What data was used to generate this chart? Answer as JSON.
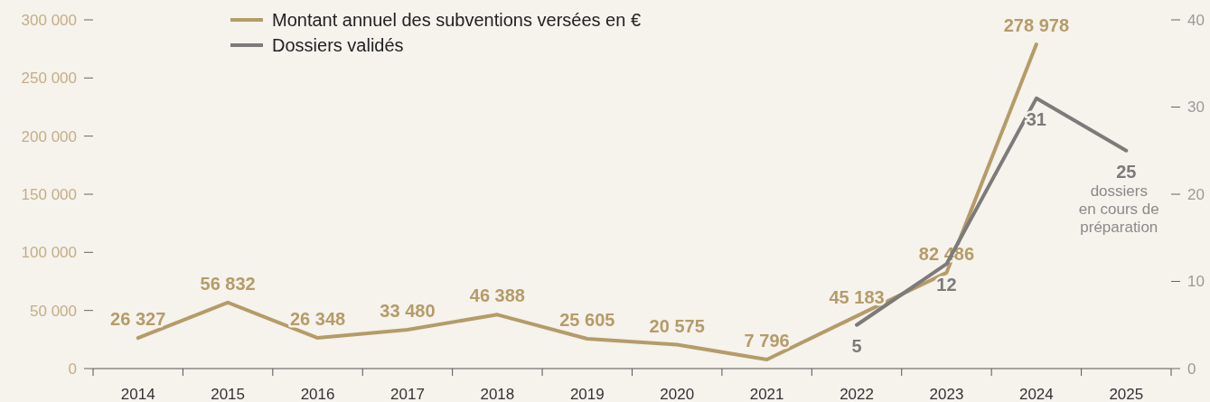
{
  "chart_data": {
    "type": "line",
    "categories": [
      "2014",
      "2015",
      "2016",
      "2017",
      "2018",
      "2019",
      "2020",
      "2021",
      "2022",
      "2023",
      "2024",
      "2025"
    ],
    "series": [
      {
        "name": "Montant annuel des subventions versées en €",
        "color": "#b49c69",
        "values": [
          26327,
          56832,
          26348,
          33480,
          46388,
          25605,
          20575,
          7796,
          45183,
          82486,
          278978,
          null
        ],
        "value_labels": [
          "26 327",
          "56 832",
          "26 348",
          "33 480",
          "46 388",
          "25 605",
          "20 575",
          "7 796",
          "45 183",
          "82 486",
          "278 978",
          null
        ]
      },
      {
        "name": "Dossiers validés",
        "color": "#7c7b79",
        "axis": "y2",
        "values": [
          null,
          null,
          null,
          null,
          null,
          null,
          null,
          null,
          5,
          12,
          31,
          25
        ],
        "value_labels": [
          null,
          null,
          null,
          null,
          null,
          null,
          null,
          null,
          "5",
          "12",
          "31",
          "25"
        ]
      }
    ],
    "ylim": [
      0,
      300000
    ],
    "yticks": [
      {
        "value": 0,
        "label": "0"
      },
      {
        "value": 50000,
        "label": "50 000"
      },
      {
        "value": 100000,
        "label": "100 000"
      },
      {
        "value": 150000,
        "label": "150 000"
      },
      {
        "value": 200000,
        "label": "200 000"
      },
      {
        "value": 250000,
        "label": "250 000"
      },
      {
        "value": 300000,
        "label": "300 000"
      }
    ],
    "y2lim": [
      0,
      40
    ],
    "y2ticks": [
      0,
      10,
      20,
      30,
      40
    ],
    "annotations": [
      "dossiers\nen cours de\npréparation"
    ],
    "legend": "top left",
    "grid": false,
    "marker": "none",
    "line_style": "solid"
  }
}
